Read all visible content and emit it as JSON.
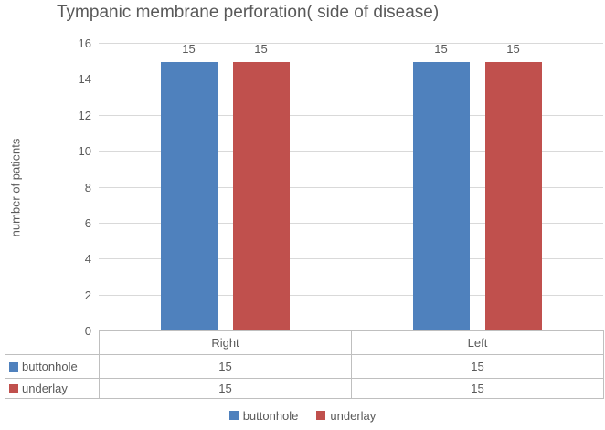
{
  "chart_data": {
    "type": "bar",
    "title": "Tympanic membrane perforation( side of disease)",
    "xlabel": "",
    "ylabel": "number of patients",
    "categories": [
      "Right",
      "Left"
    ],
    "series": [
      {
        "name": "buttonhole",
        "values": [
          15,
          15
        ],
        "color": "#4F81BD"
      },
      {
        "name": "underlay",
        "values": [
          15,
          15
        ],
        "color": "#C0504D"
      }
    ],
    "ylim": [
      0,
      16
    ],
    "ytick_step": 2,
    "yticks": [
      0,
      2,
      4,
      6,
      8,
      10,
      12,
      14,
      16
    ],
    "grid": true,
    "legend_position": "bottom",
    "legend_labels": [
      "buttonhole",
      "underlay"
    ],
    "show_data_labels": true,
    "data_labels": [
      [
        "15",
        "15"
      ],
      [
        "15",
        "15"
      ]
    ],
    "show_data_table": true,
    "data_table": {
      "column_headers": [
        "Right",
        "Left"
      ],
      "rows": [
        {
          "label": "buttonhole",
          "values": [
            "15",
            "15"
          ]
        },
        {
          "label": "underlay",
          "values": [
            "15",
            "15"
          ]
        }
      ]
    }
  },
  "style": {
    "gridline_color": "#d9d9d9",
    "table_border_color": "#bfbfbf",
    "text_color": "#595959"
  }
}
